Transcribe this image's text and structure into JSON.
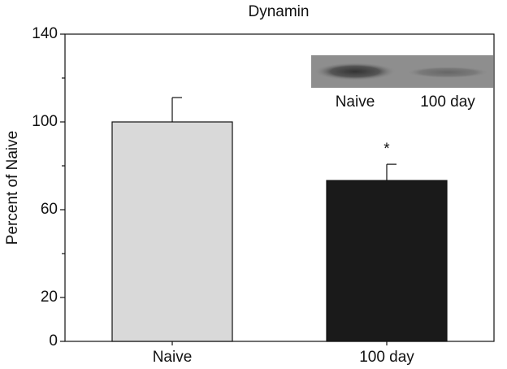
{
  "chart_data": {
    "type": "bar",
    "title": "Dynamin",
    "y_label": "Percent of Naive",
    "categories": [
      "Naive",
      "100 day"
    ],
    "values": [
      100,
      73.3
    ],
    "errors": [
      11.1,
      7.4
    ],
    "colors": [
      "#d9d9d9",
      "#1a1a1a"
    ],
    "ylim": [
      0,
      140
    ],
    "yticks": [
      0,
      20,
      60,
      100,
      140
    ],
    "minor_yticks": [
      40,
      80,
      120
    ],
    "significance": "*",
    "inset_labels": [
      "Naive",
      "100 day"
    ]
  }
}
